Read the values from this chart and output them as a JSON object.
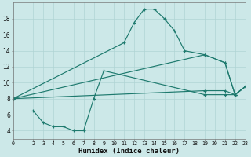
{
  "title": "",
  "xlabel": "Humidex (Indice chaleur)",
  "ylabel": "",
  "bg_color": "#cce8e8",
  "line_color": "#1e7a6e",
  "grid_color": "#b0d4d4",
  "xlim": [
    0,
    23
  ],
  "ylim": [
    3,
    20
  ],
  "xticks": [
    0,
    2,
    3,
    4,
    5,
    6,
    7,
    8,
    9,
    10,
    11,
    12,
    13,
    14,
    15,
    16,
    17,
    18,
    19,
    20,
    21,
    22,
    23
  ],
  "yticks": [
    4,
    6,
    8,
    10,
    12,
    14,
    16,
    18
  ],
  "series": [
    {
      "x": [
        0,
        11,
        12,
        13,
        14,
        15,
        16,
        17,
        19,
        21,
        22,
        23
      ],
      "y": [
        8,
        15,
        17.5,
        19.2,
        19.2,
        18,
        16.5,
        14,
        13.5,
        12.5,
        8.5,
        9.5
      ]
    },
    {
      "x": [
        0,
        19,
        21,
        22,
        23
      ],
      "y": [
        8,
        13.5,
        12.5,
        8.5,
        9.5
      ]
    },
    {
      "x": [
        0,
        19,
        21,
        22,
        23
      ],
      "y": [
        8,
        9,
        9,
        8.5,
        9.5
      ]
    },
    {
      "x": [
        2,
        3,
        4,
        5,
        6,
        7,
        8,
        9,
        19,
        21,
        22,
        23
      ],
      "y": [
        6.5,
        5,
        4.5,
        4.5,
        4,
        4,
        8,
        11.5,
        8.5,
        8.5,
        8.5,
        9.5
      ]
    }
  ]
}
